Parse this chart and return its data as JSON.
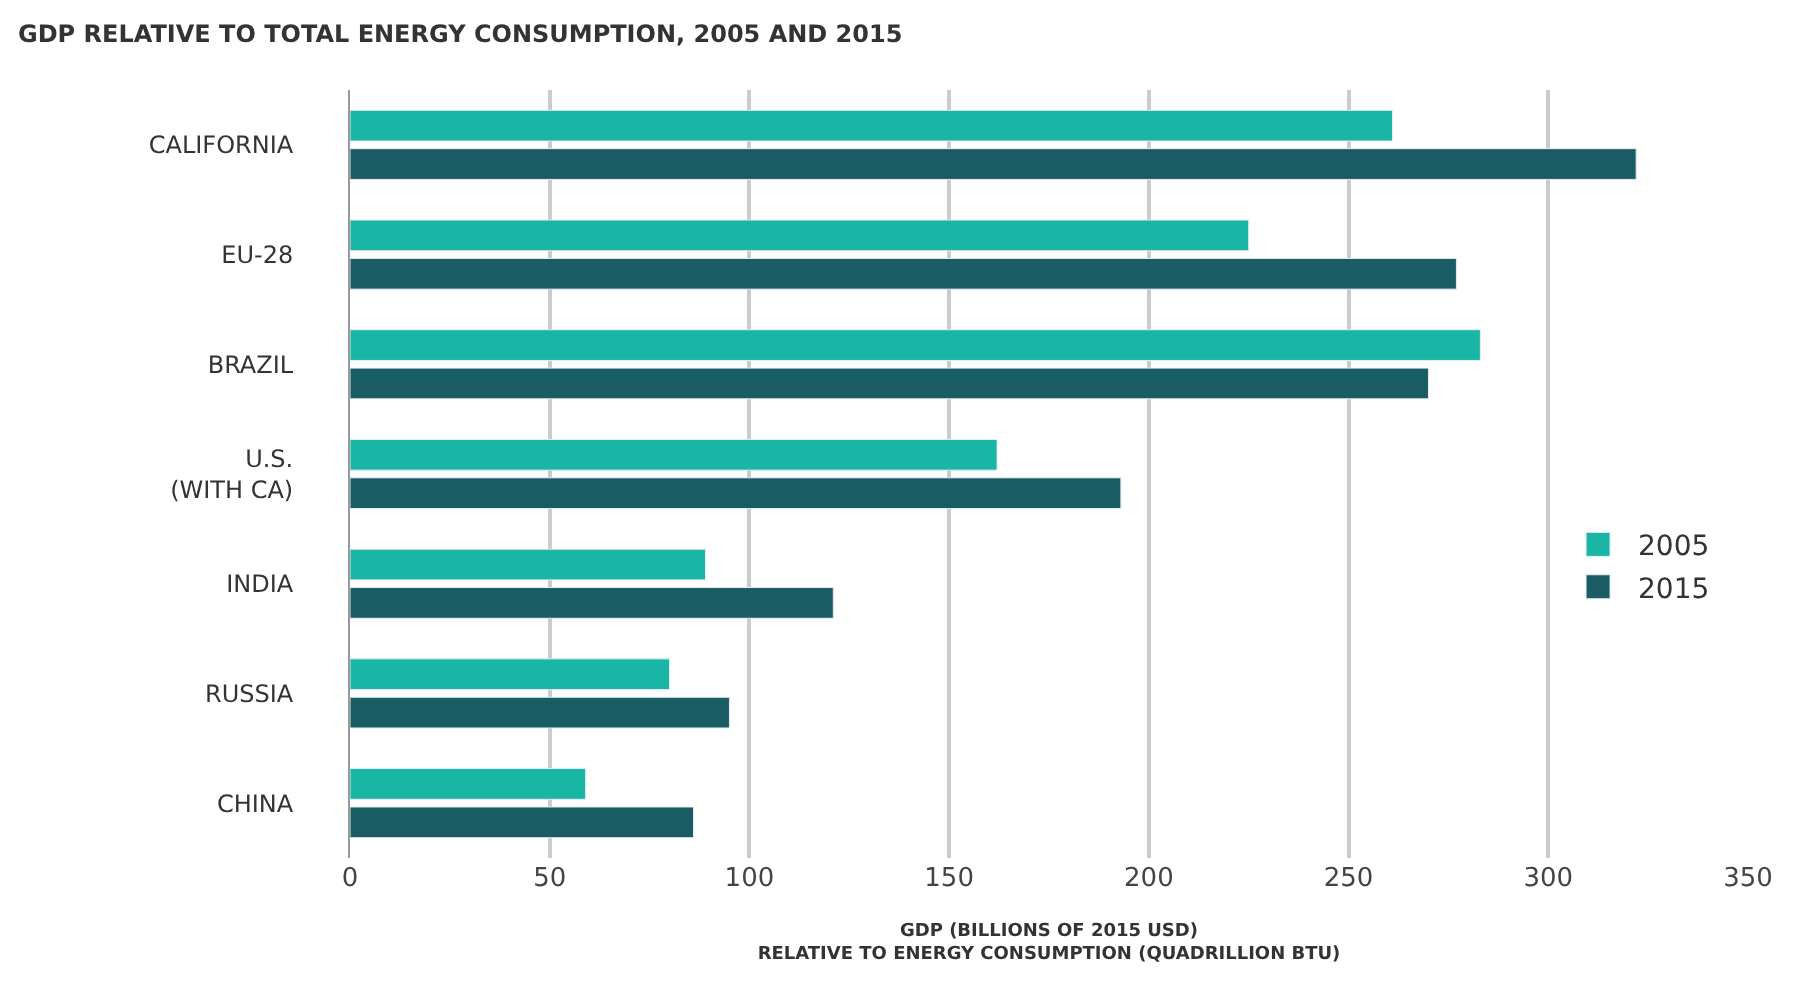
{
  "chart_data": {
    "type": "bar",
    "orientation": "horizontal",
    "title": "GDP RELATIVE TO TOTAL ENERGY CONSUMPTION, 2005 AND 2015",
    "xlabel": "GDP (BILLIONS OF 2015 USD)\nRELATIVE TO ENERGY CONSUMPTION (QUADRILLION BTU)",
    "categories": [
      "CALIFORNIA",
      "EU-28",
      "BRAZIL",
      "U.S.\n(WITH CA)",
      "INDIA",
      "RUSSIA",
      "CHINA"
    ],
    "series": [
      {
        "name": "2005",
        "color": "#19b5a5",
        "values": [
          261,
          225,
          283,
          162,
          89,
          80,
          59
        ]
      },
      {
        "name": "2015",
        "color": "#1a5c63",
        "values": [
          322,
          277,
          270,
          193,
          121,
          95,
          86
        ]
      }
    ],
    "xlim": [
      0,
      350
    ],
    "xticks": [
      0,
      50,
      100,
      150,
      200,
      250,
      300,
      350
    ],
    "grid": "x",
    "legend": "right"
  }
}
